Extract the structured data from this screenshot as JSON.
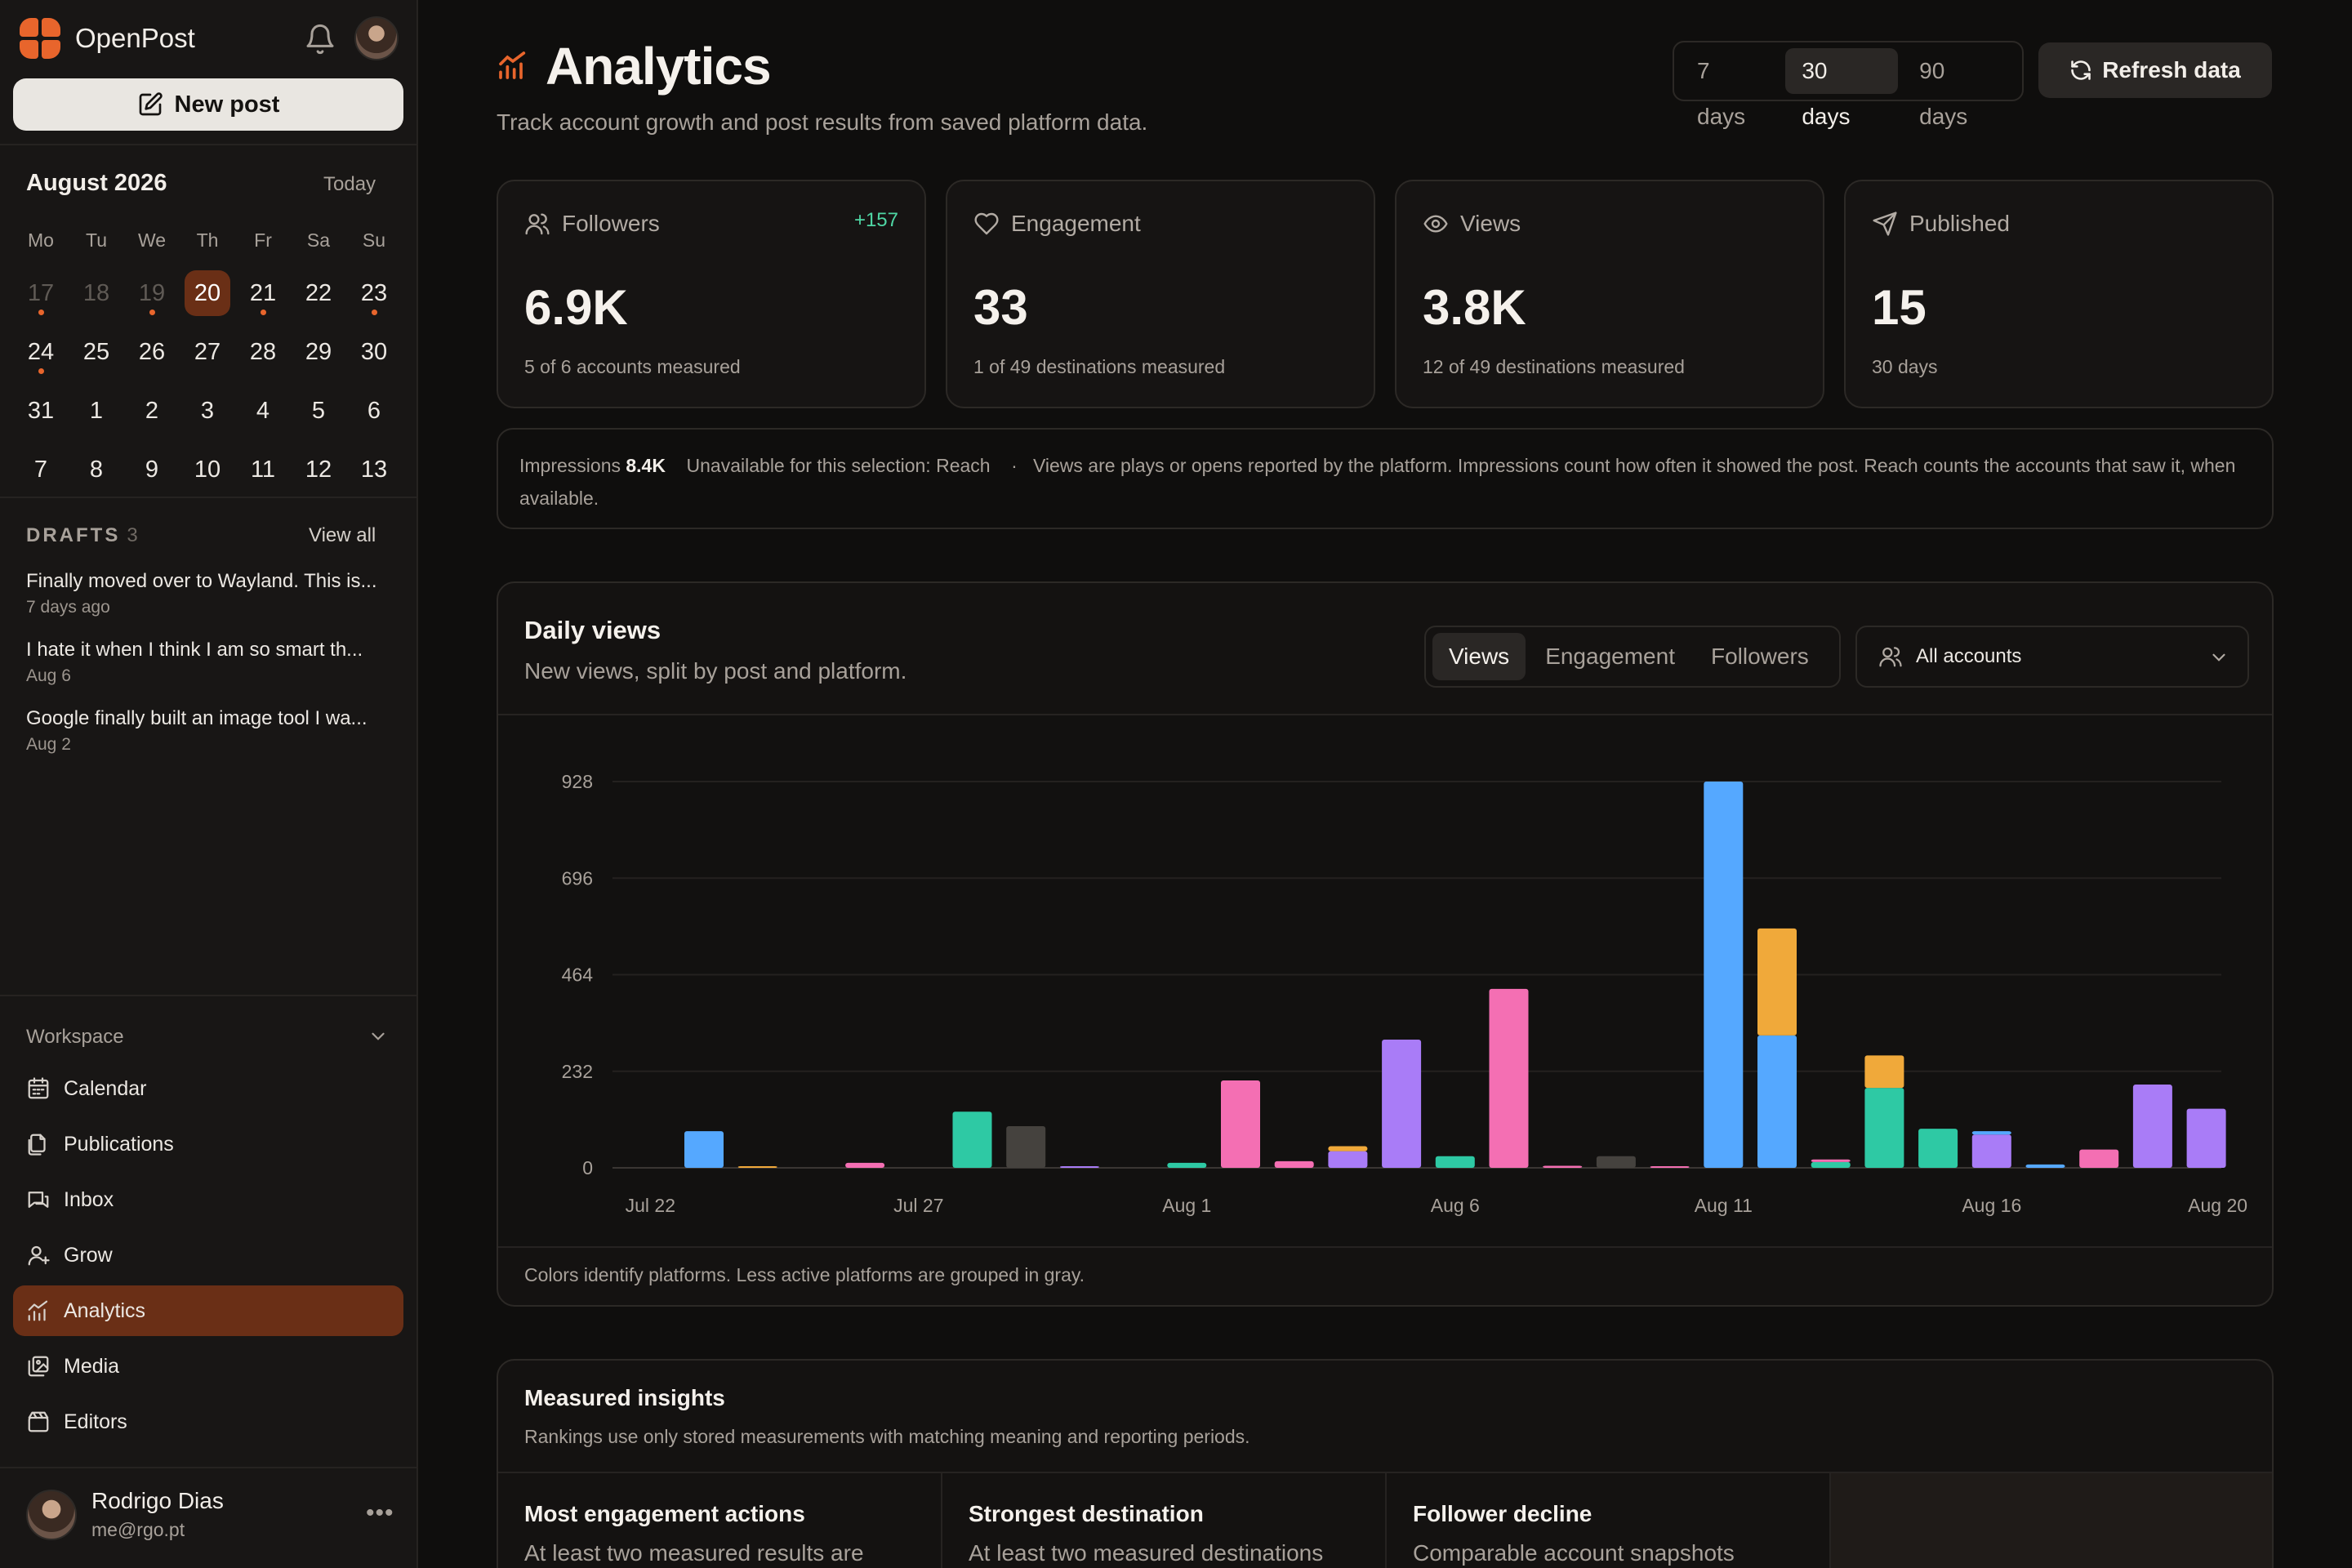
{
  "app": {
    "name": "OpenPost"
  },
  "sidebar": {
    "new_post_label": "New post",
    "calendar": {
      "month_label": "August 2026",
      "today_label": "Today",
      "weekdays": [
        "Mo",
        "Tu",
        "We",
        "Th",
        "Fr",
        "Sa",
        "Su"
      ],
      "days": [
        {
          "n": "17",
          "past": true,
          "dot": true
        },
        {
          "n": "18",
          "past": true,
          "dot": false
        },
        {
          "n": "19",
          "past": true,
          "dot": true
        },
        {
          "n": "20",
          "selected": true,
          "dot": false
        },
        {
          "n": "21",
          "dot": true
        },
        {
          "n": "22",
          "dot": false
        },
        {
          "n": "23",
          "dot": true
        },
        {
          "n": "24",
          "dot": true
        },
        {
          "n": "25"
        },
        {
          "n": "26"
        },
        {
          "n": "27"
        },
        {
          "n": "28"
        },
        {
          "n": "29"
        },
        {
          "n": "30"
        },
        {
          "n": "31"
        },
        {
          "n": "1"
        },
        {
          "n": "2"
        },
        {
          "n": "3"
        },
        {
          "n": "4"
        },
        {
          "n": "5"
        },
        {
          "n": "6"
        },
        {
          "n": "7"
        },
        {
          "n": "8"
        },
        {
          "n": "9"
        },
        {
          "n": "10"
        },
        {
          "n": "11"
        },
        {
          "n": "12"
        },
        {
          "n": "13"
        }
      ]
    },
    "drafts": {
      "heading": "DRAFTS",
      "count": "3",
      "view_all_label": "View all",
      "items": [
        {
          "title": "Finally moved over to Wayland. This is...",
          "date": "7 days ago"
        },
        {
          "title": "I hate it when I think I am so smart th...",
          "date": "Aug 6"
        },
        {
          "title": "Google finally built an image tool I wa...",
          "date": "Aug 2"
        }
      ]
    },
    "workspace": {
      "heading": "Workspace",
      "items": [
        {
          "label": "Calendar",
          "icon": "calendar-icon"
        },
        {
          "label": "Publications",
          "icon": "publications-icon"
        },
        {
          "label": "Inbox",
          "icon": "inbox-icon"
        },
        {
          "label": "Grow",
          "icon": "grow-icon"
        },
        {
          "label": "Analytics",
          "icon": "analytics-icon",
          "active": true
        },
        {
          "label": "Media",
          "icon": "media-icon"
        },
        {
          "label": "Editors",
          "icon": "editors-icon"
        }
      ]
    },
    "user": {
      "name": "Rodrigo Dias",
      "email": "me@rgo.pt"
    }
  },
  "header": {
    "title": "Analytics",
    "subtitle": "Track account growth and post results from saved platform data.",
    "ranges": [
      "7 days",
      "30 days",
      "90 days"
    ],
    "selected_range": "30 days",
    "refresh_label": "Refresh data"
  },
  "kpis": [
    {
      "label": "Followers",
      "value": "6.9K",
      "note": "5 of 6 accounts measured",
      "delta": "+157",
      "icon": "users-icon"
    },
    {
      "label": "Engagement",
      "value": "33",
      "note": "1 of 49 destinations measured",
      "delta": "",
      "icon": "heart-icon"
    },
    {
      "label": "Views",
      "value": "3.8K",
      "note": "12 of 49 destinations measured",
      "delta": "",
      "icon": "eye-icon"
    },
    {
      "label": "Published",
      "value": "15",
      "note": "30 days",
      "delta": "",
      "icon": "send-icon"
    }
  ],
  "info_strip": {
    "impressions_label": "Impressions",
    "impressions_value": "8.4K",
    "unavailable_text": "Unavailable for this selection: Reach",
    "separator": "·",
    "explanation": "Views are plays or opens reported by the platform. Impressions count how often it showed the post. Reach counts the accounts that saw it, when available."
  },
  "daily_views": {
    "title": "Daily views",
    "subtitle": "New views, split by post and platform.",
    "metric_tabs": [
      "Views",
      "Engagement",
      "Followers"
    ],
    "selected_metric": "Views",
    "account_filter": "All accounts",
    "footnote": "Colors identify platforms. Less active platforms are grouped in gray."
  },
  "colors": {
    "blue": "#55a8ff",
    "orange": "#f0a93a",
    "pink": "#f46fb3",
    "teal": "#2ec9a4",
    "gray": "#45423e",
    "purple": "#a97cf7",
    "accent": "#e8652c"
  },
  "chart_data": {
    "type": "bar",
    "stacked": true,
    "y_ticks": [
      0,
      232,
      464,
      696,
      928
    ],
    "ylim": [
      0,
      928
    ],
    "x_tick_labels": [
      "Jul 22",
      "Jul 27",
      "Aug 1",
      "Aug 6",
      "Aug 11",
      "Aug 16",
      "Aug 20"
    ],
    "grid": true,
    "categories": [
      "Jul 23",
      "Jul 24",
      "Jul 25",
      "Jul 26",
      "Jul 27",
      "Jul 28",
      "Jul 29",
      "Jul 30",
      "Jul 31",
      "Aug 1",
      "Aug 2",
      "Aug 3",
      "Aug 4",
      "Aug 5",
      "Aug 6",
      "Aug 7",
      "Aug 8",
      "Aug 9",
      "Aug 10",
      "Aug 11",
      "Aug 12",
      "Aug 13",
      "Aug 14",
      "Aug 15",
      "Aug 16",
      "Aug 17",
      "Aug 18",
      "Aug 19",
      "Aug 20"
    ],
    "stacks": [
      [
        {
          "color": "blue",
          "value": 88
        }
      ],
      [
        {
          "color": "orange",
          "value": 4
        }
      ],
      [],
      [
        {
          "color": "pink",
          "value": 12
        }
      ],
      [],
      [
        {
          "color": "teal",
          "value": 135
        }
      ],
      [
        {
          "color": "gray",
          "value": 100
        }
      ],
      [
        {
          "color": "purple",
          "value": 4
        }
      ],
      [],
      [
        {
          "color": "teal",
          "value": 12
        }
      ],
      [
        {
          "color": "pink",
          "value": 210
        }
      ],
      [
        {
          "color": "pink",
          "value": 16
        }
      ],
      [
        {
          "color": "purple",
          "value": 40
        },
        {
          "color": "orange",
          "value": 12
        }
      ],
      [
        {
          "color": "purple",
          "value": 308
        }
      ],
      [
        {
          "color": "teal",
          "value": 28
        }
      ],
      [
        {
          "color": "pink",
          "value": 430
        }
      ],
      [
        {
          "color": "pink",
          "value": 5
        }
      ],
      [
        {
          "color": "gray",
          "value": 28
        }
      ],
      [
        {
          "color": "pink",
          "value": 4
        }
      ],
      [
        {
          "color": "blue",
          "value": 928
        }
      ],
      [
        {
          "color": "blue",
          "value": 318
        },
        {
          "color": "orange",
          "value": 257
        }
      ],
      [
        {
          "color": "teal",
          "value": 14
        },
        {
          "color": "pink",
          "value": 6
        }
      ],
      [
        {
          "color": "teal",
          "value": 192
        },
        {
          "color": "orange",
          "value": 78
        }
      ],
      [
        {
          "color": "teal",
          "value": 94
        }
      ],
      [
        {
          "color": "purple",
          "value": 80
        },
        {
          "color": "blue",
          "value": 8
        }
      ],
      [
        {
          "color": "blue",
          "value": 8
        }
      ],
      [
        {
          "color": "pink",
          "value": 44
        }
      ],
      [
        {
          "color": "purple",
          "value": 200
        }
      ],
      [
        {
          "color": "purple",
          "value": 142
        }
      ]
    ]
  },
  "insights": {
    "title": "Measured insights",
    "subtitle": "Rankings use only stored measurements with matching meaning and reporting periods.",
    "cards": [
      {
        "title": "Most engagement actions",
        "text": "At least two measured results are"
      },
      {
        "title": "Strongest destination",
        "text": "At least two measured destinations"
      },
      {
        "title": "Follower decline",
        "text": "Comparable account snapshots"
      }
    ]
  }
}
